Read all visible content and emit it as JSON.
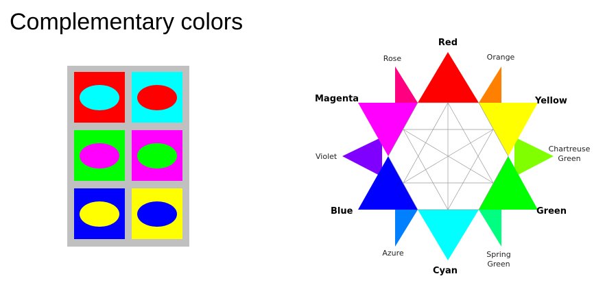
{
  "title": "Complementary colors",
  "swatches": [
    {
      "background": "#ff0000",
      "ellipse": "#00ffff"
    },
    {
      "background": "#00ffff",
      "ellipse": "#ff0000"
    },
    {
      "background": "#00ff00",
      "ellipse": "#ff00ff"
    },
    {
      "background": "#ff00ff",
      "ellipse": "#00ff00"
    },
    {
      "background": "#0000ff",
      "ellipse": "#ffff00"
    },
    {
      "background": "#ffff00",
      "ellipse": "#0000ff"
    }
  ],
  "wheel": {
    "primary_colors": [
      {
        "label": "Red",
        "color": "#ff0000"
      },
      {
        "label": "Yellow",
        "color": "#ffff00"
      },
      {
        "label": "Green",
        "color": "#00ff00"
      },
      {
        "label": "Cyan",
        "color": "#00ffff"
      },
      {
        "label": "Blue",
        "color": "#0000ff"
      },
      {
        "label": "Magenta",
        "color": "#ff00ff"
      }
    ],
    "tertiary_colors": [
      {
        "label": "Orange",
        "color": "#ff8000"
      },
      {
        "label_line1": "Chartreuse",
        "label_line2": "Green",
        "color": "#80ff00"
      },
      {
        "label_line1": "Spring",
        "label_line2": "Green",
        "color": "#00ff80"
      },
      {
        "label": "Azure",
        "color": "#0080ff"
      },
      {
        "label": "Violet",
        "color": "#8000ff"
      },
      {
        "label": "Rose",
        "color": "#ff0080"
      }
    ]
  }
}
